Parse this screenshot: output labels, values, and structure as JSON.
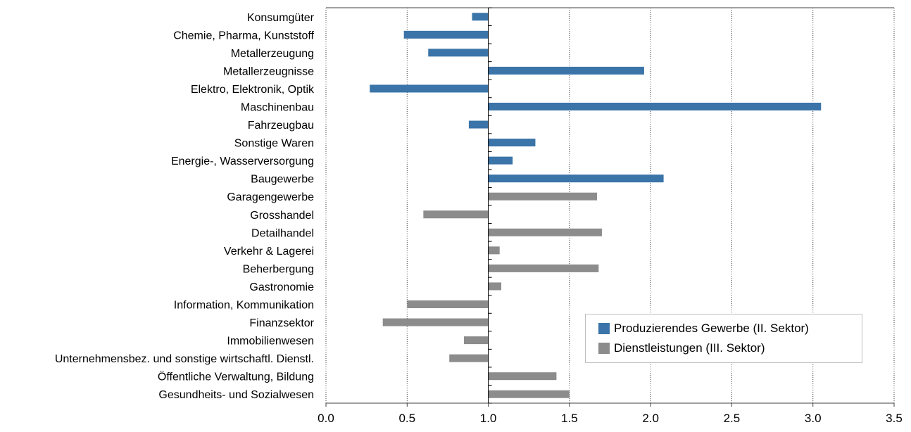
{
  "chart_data": {
    "type": "bar",
    "orientation": "horizontal",
    "baseline": 1.0,
    "xlim": [
      0.0,
      3.5
    ],
    "x_ticks": [
      "0.0",
      "0.5",
      "1.0",
      "1.5",
      "2.0",
      "2.5",
      "3.0",
      "3.5"
    ],
    "grid": "vertical-dotted",
    "legend_position": "bottom-right",
    "series": [
      {
        "name": "Produzierendes Gewerbe (II. Sektor)",
        "color": "#3a74a8",
        "categories": [
          "Konsumgüter",
          "Chemie, Pharma, Kunststoff",
          "Metallerzeugung",
          "Metallerzeugnisse",
          "Elektro, Elektronik, Optik",
          "Maschinenbau",
          "Fahrzeugbau",
          "Sonstige Waren",
          "Energie-, Wasserversorgung",
          "Baugewerbe"
        ],
        "values": [
          0.9,
          0.48,
          0.63,
          1.96,
          0.27,
          3.05,
          0.88,
          1.29,
          1.15,
          2.08
        ]
      },
      {
        "name": "Dienstleistungen (III. Sektor)",
        "color": "#8c8c8c",
        "categories": [
          "Garagengewerbe",
          "Grosshandel",
          "Detailhandel",
          "Verkehr & Lagerei",
          "Beherbergung",
          "Gastronomie",
          "Information, Kommunikation",
          "Finanzsektor",
          "Immobilienwesen",
          "Unternehmensbez. und sonstige wirtschaftl. Dienstl.",
          "Öffentliche Verwaltung, Bildung",
          "Gesundheits- und Sozialwesen"
        ],
        "values": [
          1.67,
          0.6,
          1.7,
          1.07,
          1.68,
          1.08,
          0.5,
          0.35,
          0.85,
          0.76,
          1.42,
          1.5
        ]
      }
    ]
  }
}
